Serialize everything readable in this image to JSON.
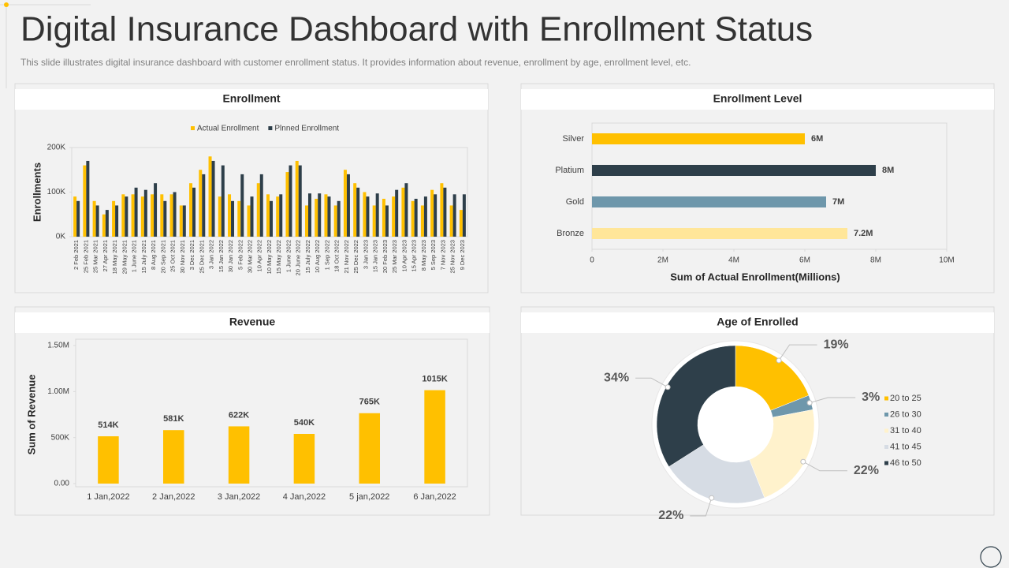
{
  "header": {
    "title": "Digital Insurance Dashboard with Enrollment Status",
    "subtitle": "This slide illustrates digital insurance dashboard with customer enrollment status. It provides information about revenue, enrollment by age, enrollment level, etc."
  },
  "chart_data": [
    {
      "type": "bar",
      "title": "Enrollment",
      "ylabel": "Enrollments",
      "legend": "top",
      "grid": false,
      "categories": [
        "2 Feb 2021",
        "25 Feb 2021",
        "25 Mar 2021",
        "27 Apr 2021",
        "18 May 2021",
        "29 May 2021",
        "1 June 2021",
        "15 July 2021",
        "8 Aug 2021",
        "20 Sep 2021",
        "25 Oct 2021",
        "30 Nov 2021",
        "3 Dec 2021",
        "25 Dec 2021",
        "3 Jan 2022",
        "15 Jan 2022",
        "30 Jan 2022",
        "5 Feb 2022",
        "30 Mar 2022",
        "10 Apr 2022",
        "10 May 2022",
        "15 May 2022",
        "1 June 2022",
        "20 June 2022",
        "15 July 2022",
        "10 Aug 2022",
        "1 Sep 2022",
        "18 Oct 2022",
        "21 Nov 2022",
        "25 Dec 2022",
        "3 Jan 2023",
        "15 Jan 2023",
        "20 Feb 2023",
        "25 Mar 2023",
        "10 Apr 2023",
        "15 Apr 2023",
        "8 May 2023",
        "5 Sep 2023",
        "7 Nov 2023",
        "25 Nov 2023",
        "9 Dec 2023"
      ],
      "series": [
        {
          "name": "Actual Enrollment",
          "color": "#ffc000",
          "values": [
            90000,
            160000,
            80000,
            50000,
            80000,
            95000,
            95000,
            90000,
            95000,
            95000,
            95000,
            70000,
            120000,
            150000,
            180000,
            90000,
            95000,
            80000,
            70000,
            120000,
            95000,
            90000,
            145000,
            170000,
            70000,
            85000,
            95000,
            70000,
            150000,
            120000,
            100000,
            70000,
            85000,
            90000,
            110000,
            80000,
            70000,
            105000,
            120000,
            70000,
            60000
          ]
        },
        {
          "name": "Plnned Enrollment",
          "color": "#2e3f4a",
          "values": [
            80000,
            170000,
            70000,
            60000,
            70000,
            90000,
            110000,
            105000,
            120000,
            80000,
            100000,
            70000,
            110000,
            140000,
            170000,
            160000,
            80000,
            140000,
            90000,
            140000,
            80000,
            95000,
            160000,
            160000,
            97000,
            97000,
            90000,
            80000,
            140000,
            110000,
            90000,
            97000,
            70000,
            105000,
            120000,
            85000,
            90000,
            95000,
            110000,
            95000,
            95000
          ]
        }
      ],
      "ylim": [
        0,
        200000
      ],
      "yticks": [
        {
          "value": 0,
          "label": "0K"
        },
        {
          "value": 100000,
          "label": "100K"
        },
        {
          "value": 200000,
          "label": "200K"
        }
      ]
    },
    {
      "type": "hbar",
      "title": "Enrollment Level",
      "xlabel": "Sum of Actual Enrollment(Millions)",
      "categories": [
        "Silver",
        "Platium",
        "Gold",
        "Bronze"
      ],
      "values": [
        6000000,
        8000000,
        6600000,
        7200000
      ],
      "value_labels": [
        "6M",
        "8M",
        "7M",
        "7.2M"
      ],
      "colors": [
        "#ffc000",
        "#2e3f4a",
        "#6e97ab",
        "#ffe699"
      ],
      "xlim": [
        0,
        10000000
      ],
      "xticks": [
        0,
        {
          "value": 2000000,
          "label": "2M"
        },
        {
          "value": 4000000,
          "label": "4M"
        },
        {
          "value": 6000000,
          "label": "6M"
        },
        {
          "value": 8000000,
          "label": "8M"
        },
        {
          "value": 10000000,
          "label": "10M"
        }
      ]
    },
    {
      "type": "bar",
      "title": "Revenue",
      "ylabel": "Sum of Revenue",
      "color": "#ffc000",
      "grid": false,
      "categories": [
        "1 Jan,2022",
        "2 Jan,2022",
        "3 Jan,2022",
        "4 Jan,2022",
        "5 jan,2022",
        "6 Jan,2022"
      ],
      "values": [
        514000,
        581000,
        622000,
        540000,
        765000,
        1015000
      ],
      "value_labels": [
        "514K",
        "581K",
        "622K",
        "540K",
        "765K",
        "1015K"
      ],
      "ylim": [
        0,
        1500000
      ],
      "yticks": [
        {
          "value": 0,
          "label": "0.00"
        },
        {
          "value": 500000,
          "label": "500K"
        },
        {
          "value": 1000000,
          "label": "1.00M"
        },
        {
          "value": 1500000,
          "label": "1.50M"
        }
      ]
    },
    {
      "type": "donut",
      "title": "Age of Enrolled",
      "legend": "right",
      "categories": [
        "20 to 25",
        "26 to 30",
        "31 to 40",
        "41 to 45",
        "46 to 50"
      ],
      "values": [
        19,
        3,
        22,
        22,
        34
      ],
      "value_labels": [
        "19%",
        "3%",
        "22%",
        "22%",
        "34%"
      ],
      "colors": [
        "#ffc000",
        "#6e97ab",
        "#fff2cc",
        "#d6dce4",
        "#2e3f4a"
      ]
    }
  ]
}
